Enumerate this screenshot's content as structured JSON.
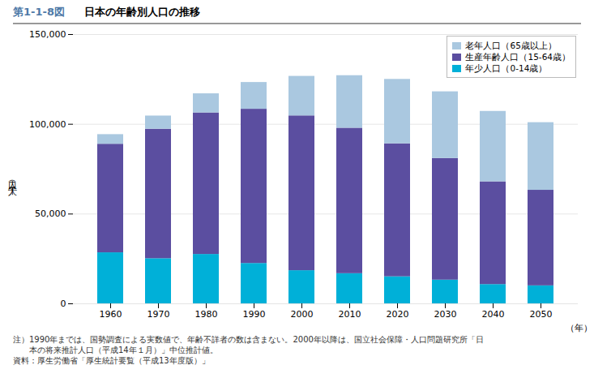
{
  "chart_data": {
    "type": "bar",
    "stacked": true,
    "title": "日本の年齢別人口の推移",
    "annotations": [
      "第1-1-8図",
      "注）1990年までは、国勢調査による実数値で、年齢不詳者の数は含まない。2000年以降は、国立社会保障・人口問題研究所「日",
      "　　本の将来推計人口（平成14年１月）」中位推計値。",
      "資料：厚生労働省「厚生統計要覧（平成13年度版）」"
    ],
    "xlabel": "（年）",
    "ylabel": "人口（千人）",
    "categories": [
      "1960",
      "1970",
      "1980",
      "1990",
      "2000",
      "2010",
      "2020",
      "2030",
      "2040",
      "2050"
    ],
    "series": [
      {
        "name": "年少人口（0-14歳）",
        "color": "#00b0d8",
        "values": [
          28434,
          25153,
          27507,
          22486,
          18472,
          16803,
          15075,
          13212,
          10732,
          10016
        ]
      },
      {
        "name": "生産年齢人口（15-64歳）",
        "color": "#5b4ea0",
        "values": [
          60469,
          72119,
          78835,
          85904,
          86220,
          81032,
          74058,
          67730,
          57241,
          53227
        ]
      },
      {
        "name": "老年人口（65歳以上）",
        "color": "#aac8e0",
        "values": [
          5350,
          7331,
          10647,
          14895,
          22005,
          29246,
          35878,
          37160,
          39206,
          37676
        ]
      }
    ],
    "ylim": [
      0,
      150000
    ],
    "yticks": [
      0,
      {
        "value": 50000,
        "label": "50,000"
      },
      {
        "value": 100000,
        "label": "100,000"
      },
      {
        "value": 150000,
        "label": "150,000"
      }
    ],
    "grid": true,
    "legend": "upper right"
  }
}
